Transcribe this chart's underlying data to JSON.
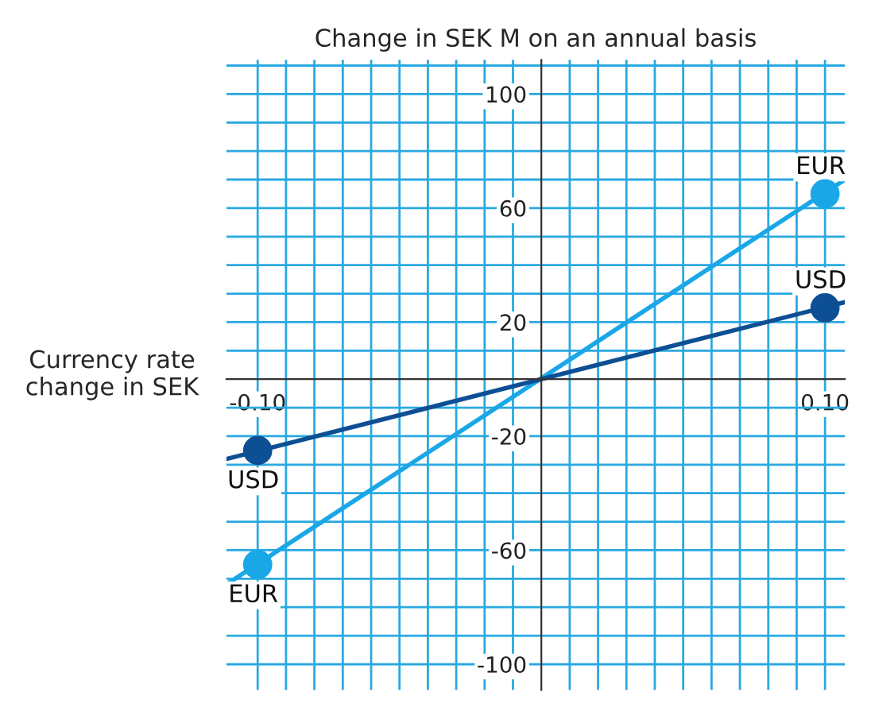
{
  "chart_data": {
    "type": "line",
    "title": "Change in SEK M on an annual basis",
    "ylabel": "Currency rate\nchange in SEK",
    "xlim": [
      -0.111,
      0.107
    ],
    "ylim": [
      -109,
      112
    ],
    "xticks": [
      {
        "value": -0.1,
        "label": "-0.10"
      },
      {
        "value": -0.09,
        "label": null
      },
      {
        "value": -0.08,
        "label": null
      },
      {
        "value": -0.07,
        "label": null
      },
      {
        "value": -0.06,
        "label": null
      },
      {
        "value": -0.05,
        "label": null
      },
      {
        "value": -0.04,
        "label": null
      },
      {
        "value": -0.03,
        "label": null
      },
      {
        "value": -0.02,
        "label": null
      },
      {
        "value": -0.01,
        "label": null
      },
      {
        "value": 0.01,
        "label": null
      },
      {
        "value": 0.02,
        "label": null
      },
      {
        "value": 0.03,
        "label": null
      },
      {
        "value": 0.04,
        "label": null
      },
      {
        "value": 0.05,
        "label": null
      },
      {
        "value": 0.06,
        "label": null
      },
      {
        "value": 0.07,
        "label": null
      },
      {
        "value": 0.08,
        "label": null
      },
      {
        "value": 0.09,
        "label": null
      },
      {
        "value": 0.1,
        "label": "0.10"
      }
    ],
    "yticks": [
      -100,
      {
        "value": -90,
        "label": null
      },
      {
        "value": -80,
        "label": null
      },
      {
        "value": -70,
        "label": null
      },
      -60,
      {
        "value": -50,
        "label": null
      },
      {
        "value": -40,
        "label": null
      },
      {
        "value": -30,
        "label": null
      },
      -20,
      {
        "value": -10,
        "label": null
      },
      {
        "value": 10,
        "label": null
      },
      20,
      {
        "value": 30,
        "label": null
      },
      {
        "value": 40,
        "label": null
      },
      {
        "value": 50,
        "label": null
      },
      60,
      {
        "value": 70,
        "label": null
      },
      {
        "value": 80,
        "label": null
      },
      {
        "value": 90,
        "label": null
      },
      100,
      {
        "value": 110,
        "label": null
      }
    ],
    "grid": true,
    "series": [
      {
        "color": "#1aa7e8",
        "x": [
          -0.111,
          0.107
        ],
        "values": [
          -72,
          70
        ],
        "marker": "none"
      },
      {
        "color": "#0d4f94",
        "x": [
          -0.111,
          0.107
        ],
        "values": [
          -28,
          27
        ],
        "marker": "none"
      },
      {
        "type": "scatter",
        "name": "EUR",
        "color": "#1aa7e8",
        "x": [
          -0.1,
          0.1
        ],
        "values": [
          -65,
          65
        ],
        "marker": "circle"
      },
      {
        "type": "scatter",
        "name": "USD",
        "color": "#0d4f94",
        "x": [
          -0.1,
          0.1
        ],
        "values": [
          -25,
          25
        ],
        "marker": "circle"
      }
    ]
  }
}
